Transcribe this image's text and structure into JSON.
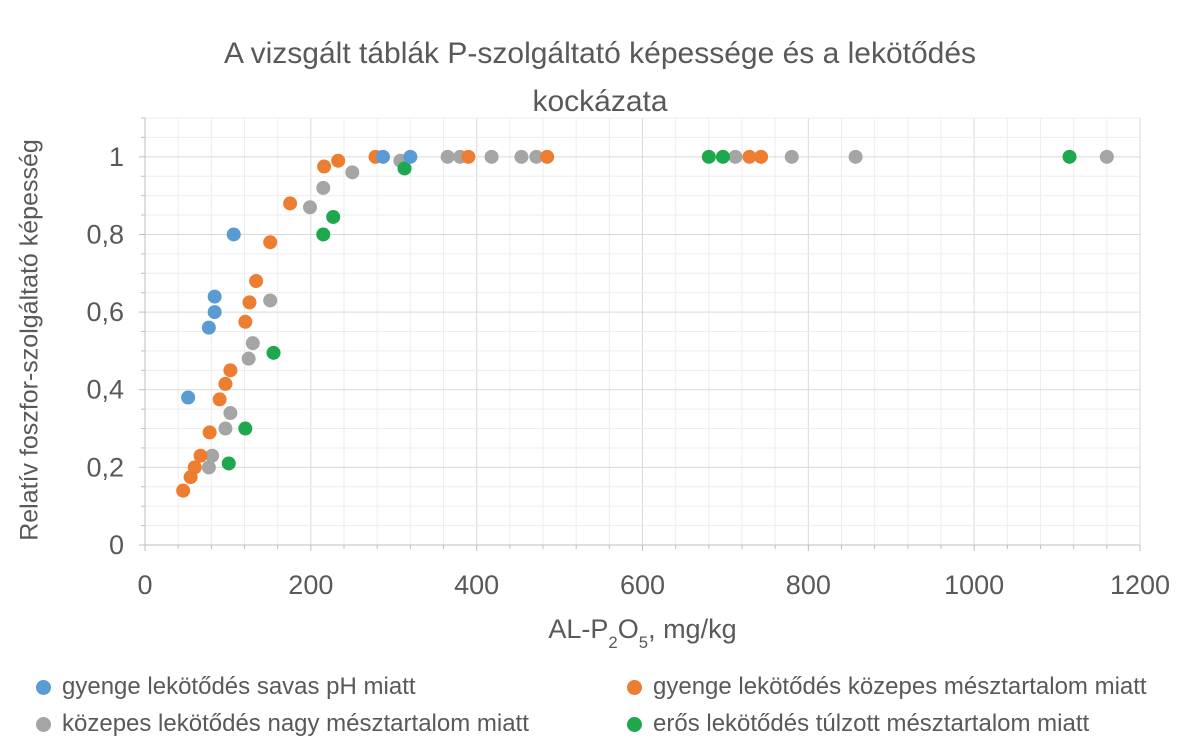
{
  "chart_data": {
    "type": "scatter",
    "title": {
      "line1": "A vizsgált táblák P-szolgáltató képessége és a lekötődés",
      "line2": "kockázata"
    },
    "x_axis": {
      "label_parts": {
        "p1": "AL-P",
        "s1": "2",
        "p2": "O",
        "s2": "5",
        "p3": ", mg/kg"
      },
      "min": 0,
      "max": 1200,
      "major_unit": 200,
      "minor_unit": 40,
      "ticks": [
        {
          "value": 0,
          "label": "0"
        },
        {
          "value": 200,
          "label": "200"
        },
        {
          "value": 400,
          "label": "400"
        },
        {
          "value": 600,
          "label": "600"
        },
        {
          "value": 800,
          "label": "800"
        },
        {
          "value": 1000,
          "label": "1000"
        },
        {
          "value": 1200,
          "label": "1200"
        }
      ]
    },
    "y_axis": {
      "label": "Relatív foszfor-szolgáltató képesség",
      "min": 0,
      "max": 1.1,
      "major_unit": 0.2,
      "minor_unit": 0.05,
      "ticks": [
        {
          "value": 0,
          "label": "0"
        },
        {
          "value": 0.2,
          "label": "0,2"
        },
        {
          "value": 0.4,
          "label": "0,4"
        },
        {
          "value": 0.6,
          "label": "0,6"
        },
        {
          "value": 0.8,
          "label": "0,8"
        },
        {
          "value": 1,
          "label": "1"
        }
      ]
    },
    "grid": {
      "visible": true
    },
    "legend_position": "bottom",
    "series": [
      {
        "name": "gyenge lekötődés savas pH miatt",
        "color": "#5B9BD5",
        "points": [
          [
            52,
            0.38
          ],
          [
            77,
            0.56
          ],
          [
            84,
            0.6
          ],
          [
            84,
            0.64
          ],
          [
            107,
            0.8
          ],
          [
            287,
            1.0
          ],
          [
            320,
            1.0
          ]
        ]
      },
      {
        "name": "gyenge lekötődés közepes mésztartalom miatt",
        "color": "#ED7D31",
        "points": [
          [
            46,
            0.14
          ],
          [
            55,
            0.175
          ],
          [
            60,
            0.2
          ],
          [
            67,
            0.23
          ],
          [
            78,
            0.29
          ],
          [
            90,
            0.375
          ],
          [
            97,
            0.415
          ],
          [
            103,
            0.45
          ],
          [
            121,
            0.575
          ],
          [
            126,
            0.625
          ],
          [
            134,
            0.68
          ],
          [
            151,
            0.78
          ],
          [
            175,
            0.88
          ],
          [
            216,
            0.975
          ],
          [
            233,
            0.99
          ],
          [
            278,
            1.0
          ],
          [
            390,
            1.0
          ],
          [
            485,
            1.0
          ],
          [
            729,
            1.0
          ],
          [
            743,
            1.0
          ]
        ]
      },
      {
        "name": "közepes lekötődés nagy mésztartalom miatt",
        "color": "#A5A5A5",
        "points": [
          [
            77,
            0.2
          ],
          [
            81,
            0.23
          ],
          [
            97,
            0.3
          ],
          [
            103,
            0.34
          ],
          [
            125,
            0.48
          ],
          [
            130,
            0.52
          ],
          [
            151,
            0.63
          ],
          [
            199,
            0.87
          ],
          [
            215,
            0.92
          ],
          [
            250,
            0.96
          ],
          [
            308,
            0.99
          ],
          [
            365,
            1.0
          ],
          [
            380,
            1.0
          ],
          [
            418,
            1.0
          ],
          [
            454,
            1.0
          ],
          [
            472,
            1.0
          ],
          [
            712,
            1.0
          ],
          [
            780,
            1.0
          ],
          [
            857,
            1.0
          ],
          [
            1160,
            1.0
          ]
        ]
      },
      {
        "name": "erős lekötődés túlzott mésztartalom miatt",
        "color": "#1EA84D",
        "points": [
          [
            101,
            0.21
          ],
          [
            121,
            0.3
          ],
          [
            155,
            0.495
          ],
          [
            215,
            0.8
          ],
          [
            227,
            0.845
          ],
          [
            313,
            0.97
          ],
          [
            680,
            1.0
          ],
          [
            697,
            1.0
          ],
          [
            1115,
            1.0
          ]
        ]
      }
    ]
  }
}
